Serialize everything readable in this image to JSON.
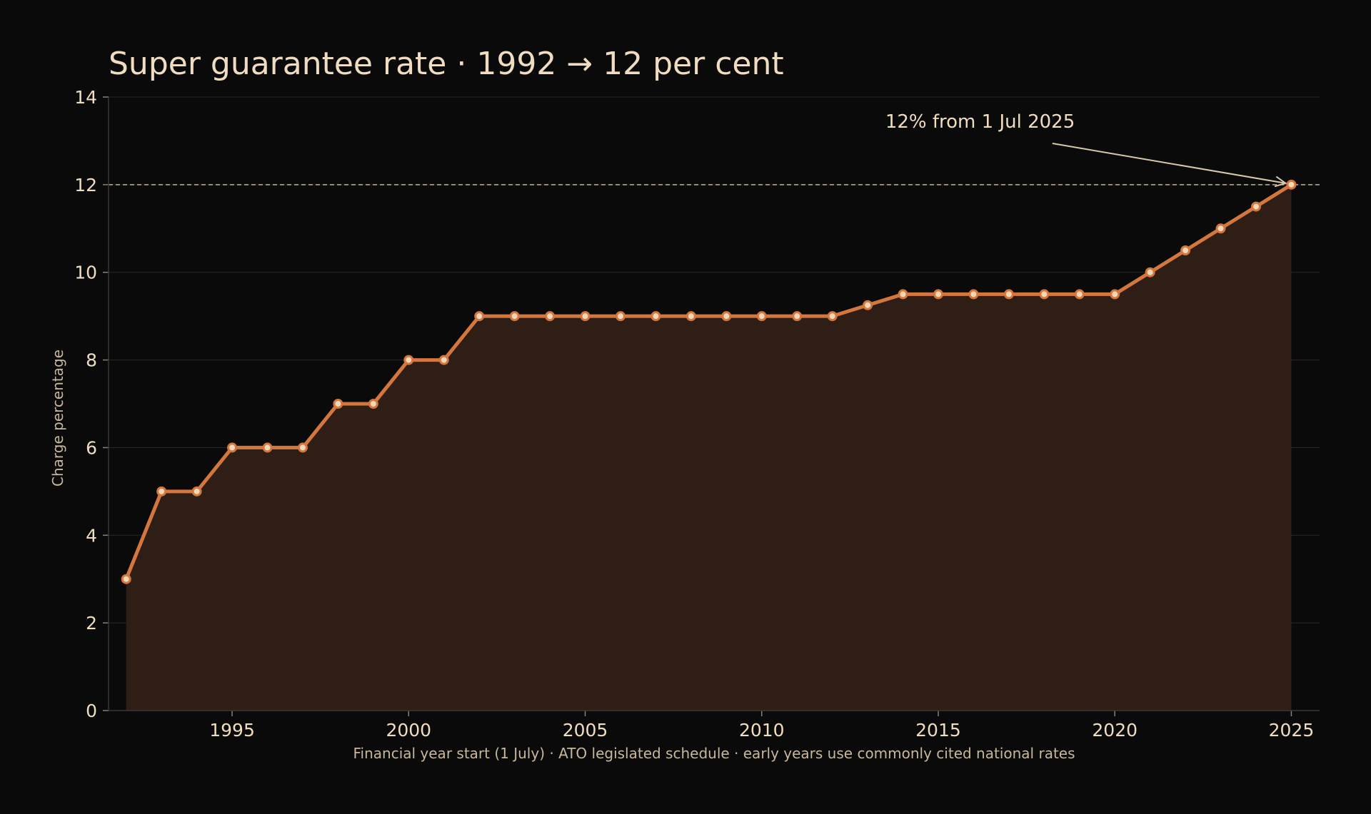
{
  "chart_data": {
    "type": "line",
    "title": "Super guarantee rate · 1992 → 12 per cent",
    "ylabel": "Charge percentage",
    "xlabel": "Financial year start (1 July)  ·  ATO legislated schedule  ·  early years use commonly cited national rates",
    "xlim": [
      1991.5,
      2025.8
    ],
    "ylim": [
      0,
      14
    ],
    "xticks": [
      1995,
      2000,
      2005,
      2010,
      2015,
      2020,
      2025
    ],
    "yticks": [
      0,
      2,
      4,
      6,
      8,
      10,
      12,
      14
    ],
    "grid": true,
    "series": [
      {
        "x": [
          1992,
          1993,
          1994,
          1995,
          1996,
          1997,
          1998,
          1999,
          2000,
          2001,
          2002,
          2003,
          2004,
          2005,
          2006,
          2007,
          2008,
          2009,
          2010,
          2011,
          2012,
          2013,
          2014,
          2015,
          2016,
          2017,
          2018,
          2019,
          2020,
          2021,
          2022,
          2023,
          2024,
          2025
        ],
        "values": [
          3,
          5,
          5,
          6,
          6,
          6,
          7,
          7,
          8,
          8,
          9,
          9,
          9,
          9,
          9,
          9,
          9,
          9,
          9,
          9,
          9,
          9.25,
          9.5,
          9.5,
          9.5,
          9.5,
          9.5,
          9.5,
          9.5,
          10,
          10.5,
          11,
          11.5,
          12
        ],
        "color": "#d4773e"
      }
    ],
    "reference_line": {
      "y": 12
    },
    "annotation": {
      "text": "12% from 1 Jul 2025",
      "point_x": 2025,
      "point_y": 12,
      "text_x": 2013.5,
      "text_y": 13.3
    }
  },
  "colors": {
    "background": "#0a0a0a",
    "area": "#2e1e16",
    "point_fill": "#f0d8b8",
    "text": "#f0dcc0"
  }
}
